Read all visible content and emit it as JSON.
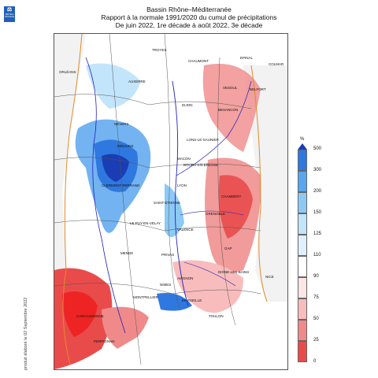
{
  "logo": {
    "mark": "⚖",
    "line1": "MÉTÉO",
    "line2": "FRANCE"
  },
  "title": {
    "line1": "Bassin Rhône–Méditerranée",
    "line2": "Rapport à la normale 1991/2020 du cumul de précipitations",
    "line3": "De juin 2022, 1re décade à août 2022, 3e décade"
  },
  "credit": "produit élaboré le 02 Septembre 2022",
  "legend": {
    "unit": "%",
    "ticks": [
      "500",
      "300",
      "200",
      "150",
      "125",
      "110",
      "90",
      "75",
      "50",
      "25",
      "0"
    ],
    "colors": [
      "#1a3db4",
      "#2f78e0",
      "#5aa6ee",
      "#8ccaf5",
      "#c3e5fb",
      "#ffffff",
      "#fde6e6",
      "#f8bcbc",
      "#f08a8a",
      "#e94b4b",
      "#f01414"
    ]
  },
  "cities": [
    "TROYES",
    "CHAUMONT",
    "EPINAL",
    "COLMAR",
    "ORLÉANS",
    "AUXERRE",
    "VESOUL",
    "BELFORT",
    "DIJON",
    "BESANCON",
    "NEVERS",
    "MOULINS",
    "LONS-LE-SAUNIER",
    "MACON",
    "BOURG-EN-BRESSE",
    "CLERMONT-FERRAND",
    "LYON",
    "CHAMBÉRY",
    "SAINT-ÉTIENNE",
    "GRENOBLE",
    "LE PUY-EN-VELAY",
    "VALENCE",
    "GAP",
    "MENDE",
    "PRIVAS",
    "DIGNE-LES-BAINS",
    "NIMES",
    "AVIGNON",
    "NICE",
    "MONTPELLIER",
    "MARSEILLE",
    "TOULON",
    "CARCASSONNE",
    "PERPIGNAN"
  ]
}
